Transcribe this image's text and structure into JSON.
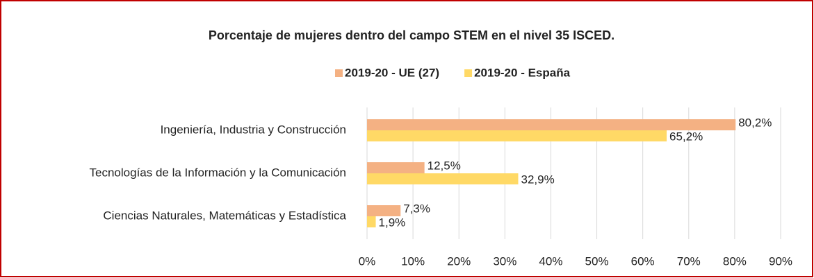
{
  "chart_data": {
    "type": "barh",
    "title": "Porcentaje de mujeres dentro del campo STEM en el nivel 35 ISCED.",
    "categories": [
      "Ingeniería, Industria y Construcción",
      "Tecnologías de la Información y la Comunicación",
      "Ciencias Naturales, Matemáticas y Estadística"
    ],
    "series": [
      {
        "name": "2019-20 - UE (27)",
        "color": "#f4b183",
        "values": [
          80.2,
          12.5,
          7.3
        ],
        "value_labels": [
          "80,2%",
          "12,5%",
          "7,3%"
        ]
      },
      {
        "name": "2019-20 - España",
        "color": "#ffd966",
        "values": [
          65.2,
          32.9,
          1.9
        ],
        "value_labels": [
          "65,2%",
          "32,9%",
          "1,9%"
        ]
      }
    ],
    "xlim": [
      0,
      90
    ],
    "xticks": [
      {
        "value": 0,
        "label": "0%"
      },
      {
        "value": 10,
        "label": "10%"
      },
      {
        "value": 20,
        "label": "20%"
      },
      {
        "value": 30,
        "label": "30%"
      },
      {
        "value": 40,
        "label": "40%"
      },
      {
        "value": 50,
        "label": "50%"
      },
      {
        "value": 60,
        "label": "60%"
      },
      {
        "value": 70,
        "label": "70%"
      },
      {
        "value": 80,
        "label": "80%"
      },
      {
        "value": 90,
        "label": "90%"
      }
    ],
    "grid": true,
    "legend": "top"
  }
}
